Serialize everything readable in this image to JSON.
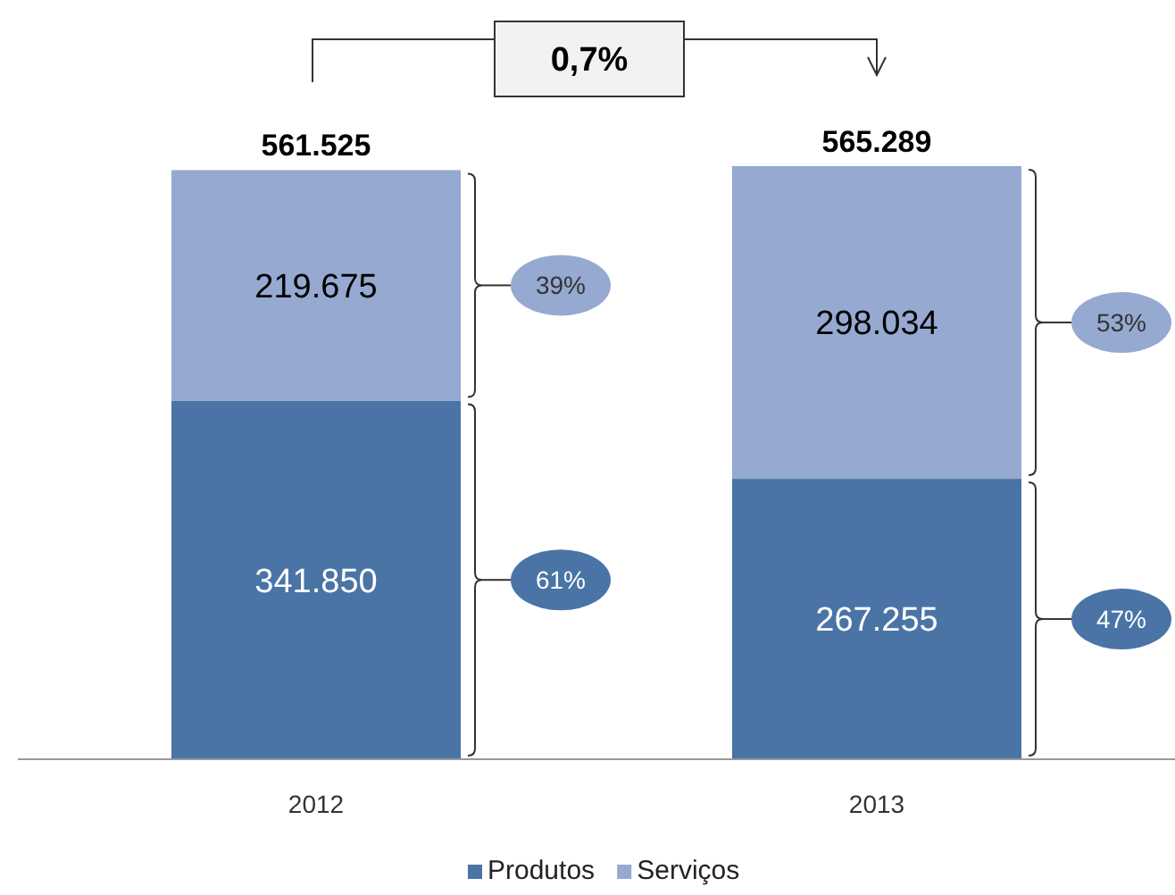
{
  "chart_data": {
    "type": "bar",
    "stacked": true,
    "categories": [
      "2012",
      "2013"
    ],
    "series": [
      {
        "name": "Produtos",
        "color": "#4a74a6",
        "values": [
          341850,
          267255
        ],
        "value_labels": [
          "341.850",
          "267.255"
        ]
      },
      {
        "name": "Serviços",
        "color": "#95a9d1",
        "values": [
          219675,
          298034
        ],
        "value_labels": [
          "219.675",
          "298.034"
        ]
      }
    ],
    "totals": [
      "561.525",
      "565.289"
    ],
    "legend": "bottom",
    "annotations": [
      "0,7%",
      "61%",
      "47%",
      "39%",
      "53%"
    ]
  }
}
